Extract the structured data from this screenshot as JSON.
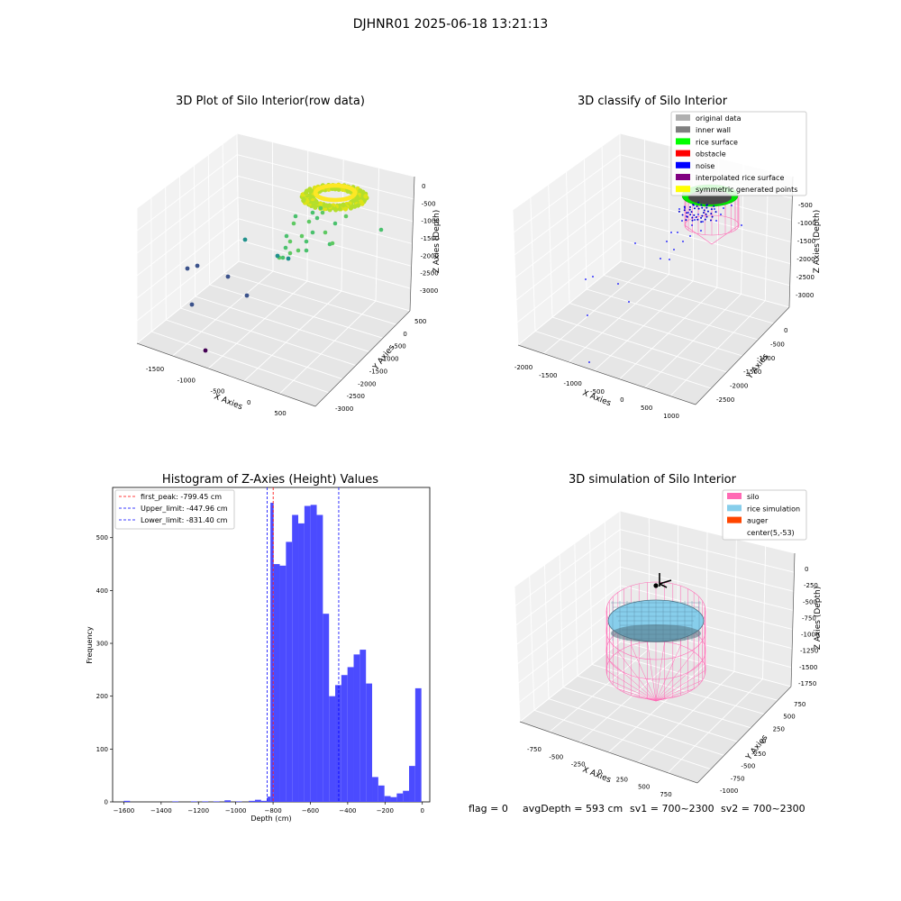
{
  "suptitle": "DJHNR01 2025-06-18 13:21:13",
  "footer": {
    "flag": "flag = 0",
    "avg": "avgDepth = 593 cm",
    "sv1": "sv1 = 700~2300",
    "sv2": "sv2 = 700~2300"
  },
  "chart_data": [
    {
      "type": "scatter",
      "title": "3D Plot of Silo Interior(row data)",
      "xlabel": "X Axies",
      "ylabel": "Y Axies",
      "zlabel": "Z Axies (Depth)",
      "x_ticks": [
        "-1500",
        "-1000",
        "-500",
        "0",
        "500"
      ],
      "y_ticks": [
        "500",
        "0",
        "-500",
        "-1000",
        "-1500",
        "-2000",
        "-2500",
        "-3000"
      ],
      "z_ticks": [
        "0",
        "-500",
        "-1000",
        "-1500",
        "-2000",
        "-2500",
        "-3000"
      ],
      "colormap": [
        "#440154",
        "#3b528b",
        "#21918c",
        "#5ec962",
        "#fde725"
      ]
    },
    {
      "type": "scatter",
      "title": "3D classify of Silo Interior",
      "xlabel": "X Axies",
      "ylabel": "Y Axies",
      "zlabel": "Z Axies (Depth)",
      "x_ticks": [
        "-2000",
        "-1500",
        "-1000",
        "-500",
        "0",
        "500",
        "1000"
      ],
      "y_ticks": [
        "0",
        "-500",
        "-1000",
        "-1500",
        "-2000",
        "-2500"
      ],
      "z_ticks": [
        "-500",
        "-1000",
        "-1500",
        "-2000",
        "-2500",
        "-3000"
      ],
      "legend": [
        {
          "label": "original data",
          "color": "#b0b0b0"
        },
        {
          "label": "inner wall",
          "color": "#808080"
        },
        {
          "label": "rice surface",
          "color": "#00ff00"
        },
        {
          "label": "obstacle",
          "color": "#ff0000"
        },
        {
          "label": "noise",
          "color": "#0000ff"
        },
        {
          "label": "interpolated rice surface",
          "color": "#800080"
        },
        {
          "label": "symmetric generated points",
          "color": "#ffff00"
        }
      ],
      "legend_position": "top-right"
    },
    {
      "type": "bar",
      "title": "Histogram of Z-Axies (Height) Values",
      "xlabel": "Depth (cm)",
      "ylabel": "Frequency",
      "xlim": [
        -1660,
        40
      ],
      "ylim": [
        0,
        595
      ],
      "x_ticks": [
        -1600,
        -1400,
        -1200,
        -1000,
        -800,
        -600,
        -400,
        -200,
        0
      ],
      "y_ticks": [
        0,
        100,
        200,
        300,
        400,
        500
      ],
      "bar_color": "#4b4bff",
      "bins": [
        {
          "x0": -1600,
          "x1": -1567,
          "v": 2
        },
        {
          "x0": -1340,
          "x1": -1307,
          "v": 1
        },
        {
          "x0": -1240,
          "x1": -1207,
          "v": 1
        },
        {
          "x0": -1180,
          "x1": -1147,
          "v": 1
        },
        {
          "x0": -1120,
          "x1": -1087,
          "v": 1
        },
        {
          "x0": -1060,
          "x1": -1027,
          "v": 3
        },
        {
          "x0": -1000,
          "x1": -967,
          "v": 1
        },
        {
          "x0": -930,
          "x1": -897,
          "v": 2
        },
        {
          "x0": -897,
          "x1": -864,
          "v": 4
        },
        {
          "x0": -864,
          "x1": -831,
          "v": 2
        },
        {
          "x0": -831,
          "x1": -814,
          "v": 10
        },
        {
          "x0": -814,
          "x1": -797,
          "v": 566
        },
        {
          "x0": -797,
          "x1": -764,
          "v": 450
        },
        {
          "x0": -764,
          "x1": -731,
          "v": 447
        },
        {
          "x0": -731,
          "x1": -698,
          "v": 492
        },
        {
          "x0": -698,
          "x1": -665,
          "v": 543
        },
        {
          "x0": -665,
          "x1": -632,
          "v": 527
        },
        {
          "x0": -632,
          "x1": -599,
          "v": 560
        },
        {
          "x0": -599,
          "x1": -566,
          "v": 562
        },
        {
          "x0": -566,
          "x1": -533,
          "v": 543
        },
        {
          "x0": -533,
          "x1": -500,
          "v": 356
        },
        {
          "x0": -500,
          "x1": -467,
          "v": 200
        },
        {
          "x0": -467,
          "x1": -434,
          "v": 221
        },
        {
          "x0": -434,
          "x1": -401,
          "v": 240
        },
        {
          "x0": -401,
          "x1": -368,
          "v": 255
        },
        {
          "x0": -368,
          "x1": -335,
          "v": 279
        },
        {
          "x0": -335,
          "x1": -302,
          "v": 288
        },
        {
          "x0": -302,
          "x1": -269,
          "v": 224
        },
        {
          "x0": -269,
          "x1": -236,
          "v": 47
        },
        {
          "x0": -236,
          "x1": -203,
          "v": 31
        },
        {
          "x0": -203,
          "x1": -170,
          "v": 11
        },
        {
          "x0": -170,
          "x1": -137,
          "v": 9
        },
        {
          "x0": -137,
          "x1": -104,
          "v": 16
        },
        {
          "x0": -104,
          "x1": -71,
          "v": 21
        },
        {
          "x0": -71,
          "x1": -38,
          "v": 68
        },
        {
          "x0": -38,
          "x1": -5,
          "v": 215
        }
      ],
      "lines": [
        {
          "label": "first_peak: -799.45 cm",
          "x": -799.45,
          "color": "#ff0000"
        },
        {
          "label": "Upper_limit: -447.96 cm",
          "x": -447.96,
          "color": "#0000ff"
        },
        {
          "label": "Lower_limit: -831.40 cm",
          "x": -831.4,
          "color": "#0000ff"
        }
      ],
      "legend_position": "top-left"
    },
    {
      "type": "scatter",
      "title": "3D simulation of Silo Interior",
      "xlabel": "X Axies",
      "ylabel": "Y Axies",
      "zlabel": "Z Axies (Depth)",
      "x_ticks": [
        "-750",
        "-500",
        "-250",
        "0",
        "250",
        "500",
        "750"
      ],
      "y_ticks": [
        "750",
        "500",
        "250",
        "0",
        "-250",
        "-500",
        "-750",
        "-1000"
      ],
      "z_ticks": [
        "0",
        "-250",
        "-500",
        "-750",
        "-1000",
        "-1250",
        "-1500",
        "-1750"
      ],
      "legend": [
        {
          "label": "silo",
          "color": "#ff69b4"
        },
        {
          "label": "rice simulation",
          "color": "#87ceeb"
        },
        {
          "label": "auger",
          "color": "#ff4500"
        },
        {
          "label": "center(5,-53)",
          "color": ""
        }
      ],
      "legend_position": "top-right"
    }
  ]
}
